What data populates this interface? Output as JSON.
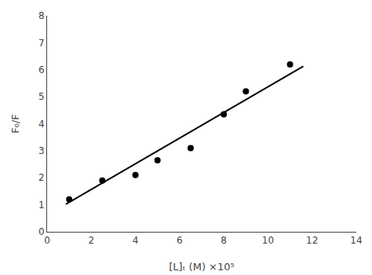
{
  "chart_data": {
    "type": "scatter",
    "xlabel": "[L]ₜ (M) ×10⁵",
    "ylabel": "F₀/F",
    "series": [
      {
        "type": "scatter",
        "color": "black",
        "marker": "circle",
        "x": [
          1.0,
          2.5,
          4.0,
          5.0,
          6.5,
          8.0,
          9.0,
          11.0
        ],
        "values": [
          1.2,
          1.9,
          2.1,
          2.65,
          3.1,
          4.35,
          5.2,
          6.2
        ]
      },
      {
        "type": "line",
        "color": "black",
        "line_style": "solid",
        "x": [
          0.85,
          11.6
        ],
        "values": [
          1.02375,
          6.13
        ]
      }
    ],
    "xlim": [
      0,
      14
    ],
    "ylim": [
      0,
      8
    ],
    "xticks": [
      0,
      2,
      4,
      6,
      8,
      10,
      12,
      14
    ],
    "yticks": [
      0,
      1,
      2,
      3,
      4,
      5,
      6,
      7,
      8
    ],
    "grid": false
  }
}
